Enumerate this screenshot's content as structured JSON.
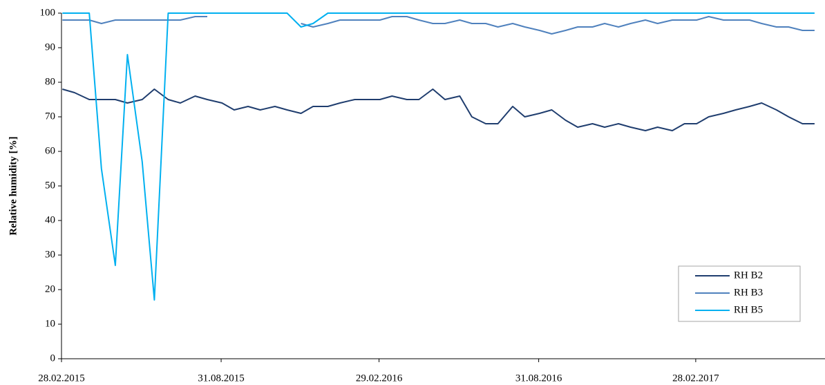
{
  "chart_data": {
    "type": "line",
    "y_label": "Relative humidity [%]",
    "x": [
      "2015-03-01",
      "2015-03-15",
      "2015-04-01",
      "2015-04-15",
      "2015-05-01",
      "2015-05-15",
      "2015-06-01",
      "2015-06-15",
      "2015-07-01",
      "2015-07-15",
      "2015-08-01",
      "2015-08-15",
      "2015-09-01",
      "2015-09-15",
      "2015-10-01",
      "2015-10-15",
      "2015-11-01",
      "2015-11-15",
      "2015-12-01",
      "2015-12-15",
      "2016-01-01",
      "2016-01-15",
      "2016-02-01",
      "2016-02-15",
      "2016-03-01",
      "2016-03-15",
      "2016-04-01",
      "2016-04-15",
      "2016-05-01",
      "2016-05-15",
      "2016-06-01",
      "2016-06-15",
      "2016-07-01",
      "2016-07-15",
      "2016-08-01",
      "2016-08-15",
      "2016-09-01",
      "2016-09-15",
      "2016-10-01",
      "2016-10-15",
      "2016-11-01",
      "2016-11-15",
      "2016-12-01",
      "2016-12-15",
      "2017-01-01",
      "2017-01-15",
      "2017-02-01",
      "2017-02-15",
      "2017-03-01",
      "2017-03-15",
      "2017-04-01",
      "2017-04-15",
      "2017-05-01",
      "2017-05-15",
      "2017-06-01",
      "2017-06-15",
      "2017-07-01",
      "2017-07-15"
    ],
    "series": [
      {
        "name": "RH B2",
        "color": "#1f3d6e",
        "values": [
          78,
          77,
          75,
          75,
          75,
          74,
          75,
          78,
          75,
          74,
          76,
          75,
          74,
          72,
          73,
          72,
          73,
          72,
          71,
          73,
          73,
          74,
          75,
          75,
          75,
          76,
          75,
          75,
          78,
          75,
          76,
          70,
          68,
          68,
          73,
          70,
          71,
          72,
          69,
          67,
          68,
          67,
          68,
          67,
          66,
          67,
          66,
          68,
          68,
          70,
          71,
          72,
          73,
          74,
          72,
          70,
          68,
          68
        ]
      },
      {
        "name": "RH B3",
        "color": "#4f81bd",
        "values": [
          98,
          98,
          98,
          97,
          98,
          98,
          98,
          98,
          98,
          98,
          99,
          99,
          null,
          null,
          null,
          null,
          null,
          null,
          97,
          96,
          97,
          98,
          98,
          98,
          98,
          99,
          99,
          98,
          97,
          97,
          98,
          97,
          97,
          96,
          97,
          96,
          95,
          94,
          95,
          96,
          96,
          97,
          96,
          97,
          98,
          97,
          98,
          98,
          98,
          99,
          98,
          98,
          98,
          97,
          96,
          96,
          95,
          95
        ]
      },
      {
        "name": "RH B5",
        "color": "#00b0f0",
        "values": [
          100,
          100,
          100,
          55,
          27,
          88,
          57,
          17,
          100,
          100,
          100,
          100,
          100,
          100,
          100,
          100,
          100,
          100,
          96,
          97,
          100,
          100,
          100,
          100,
          100,
          100,
          100,
          100,
          100,
          100,
          100,
          100,
          100,
          100,
          100,
          100,
          100,
          100,
          100,
          100,
          100,
          100,
          100,
          100,
          100,
          100,
          100,
          100,
          100,
          100,
          100,
          100,
          100,
          100,
          100,
          100,
          100,
          100
        ]
      }
    ],
    "xlim": [
      "2015-02-28",
      "2017-07-27"
    ],
    "xticks": [
      {
        "value": "2015-02-28",
        "label": "28.02.2015"
      },
      {
        "value": "2015-08-31",
        "label": "31.08.2015"
      },
      {
        "value": "2016-02-29",
        "label": "29.02.2016"
      },
      {
        "value": "2016-08-31",
        "label": "31.08.2016"
      },
      {
        "value": "2017-02-28",
        "label": "28.02.2017"
      }
    ],
    "ylim": [
      0,
      100
    ],
    "yticks": [
      0,
      10,
      20,
      30,
      40,
      50,
      60,
      70,
      80,
      90,
      100
    ],
    "legend": "lower right"
  }
}
